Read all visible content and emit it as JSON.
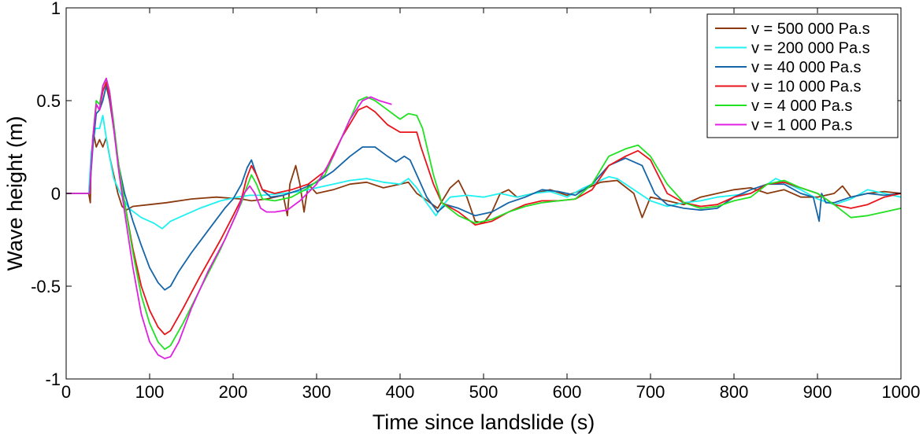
{
  "chart_data": {
    "type": "line",
    "title": "",
    "xlabel": "Time since landslide (s)",
    "ylabel": "Wave height (m)",
    "xlim": [
      0,
      1000
    ],
    "ylim": [
      -1,
      1
    ],
    "xticks": [
      0,
      100,
      200,
      300,
      400,
      500,
      600,
      700,
      800,
      900,
      1000
    ],
    "yticks": [
      -1,
      -0.5,
      0,
      0.5,
      1
    ],
    "xtick_labels": [
      "0",
      "100",
      "200",
      "300",
      "400",
      "500",
      "600",
      "700",
      "800",
      "900",
      "1000"
    ],
    "ytick_labels": [
      "-1",
      "-0.5",
      "0",
      "0.5",
      "1"
    ],
    "grid": false,
    "legend_position": "top-right",
    "series": [
      {
        "name": "v = 500 000 Pa.s",
        "color": "#8B3A0F",
        "x": [
          0,
          27,
          29,
          30,
          33,
          36,
          40,
          44,
          48,
          52,
          57,
          62,
          67,
          72,
          80,
          100,
          120,
          150,
          180,
          210,
          222,
          240,
          260,
          265,
          268,
          275,
          280,
          285,
          290,
          300,
          320,
          340,
          360,
          380,
          400,
          410,
          420,
          430,
          445,
          460,
          470,
          480,
          490,
          500,
          510,
          520,
          530,
          540,
          560,
          580,
          600,
          620,
          640,
          660,
          680,
          690,
          700,
          720,
          740,
          760,
          780,
          800,
          820,
          840,
          860,
          880,
          900,
          920,
          930,
          940,
          960,
          980,
          1000
        ],
        "y": [
          0.0,
          0.0,
          -0.05,
          0.2,
          0.32,
          0.25,
          0.29,
          0.25,
          0.3,
          0.2,
          0.1,
          0.0,
          -0.07,
          -0.09,
          -0.07,
          -0.06,
          -0.05,
          -0.03,
          -0.02,
          -0.03,
          -0.04,
          -0.03,
          -0.01,
          -0.12,
          0.05,
          0.15,
          0.05,
          -0.1,
          0.05,
          0.0,
          0.02,
          0.05,
          0.06,
          0.03,
          0.05,
          0.06,
          0.0,
          -0.03,
          -0.08,
          0.03,
          0.07,
          -0.02,
          -0.15,
          -0.16,
          -0.1,
          0.0,
          0.02,
          -0.02,
          0.0,
          0.02,
          -0.01,
          0.02,
          0.06,
          0.07,
          0.0,
          -0.13,
          -0.02,
          -0.04,
          -0.06,
          -0.02,
          0.0,
          0.02,
          0.03,
          0.0,
          0.02,
          -0.02,
          -0.02,
          0.0,
          0.04,
          -0.02,
          0.0,
          0.01,
          0.0
        ]
      },
      {
        "name": "v = 200 000 Pa.s",
        "color": "#1FF0F0",
        "x": [
          0,
          27,
          30,
          35,
          40,
          44,
          48,
          52,
          57,
          65,
          75,
          90,
          105,
          115,
          125,
          140,
          160,
          185,
          205,
          220,
          235,
          260,
          280,
          300,
          320,
          340,
          360,
          380,
          400,
          410,
          420,
          430,
          443,
          450,
          460,
          480,
          500,
          520,
          540,
          560,
          580,
          600,
          620,
          640,
          650,
          660,
          680,
          700,
          720,
          740,
          760,
          780,
          800,
          820,
          840,
          850,
          860,
          880,
          900,
          920,
          940,
          960,
          980,
          1000
        ],
        "y": [
          0.0,
          0.0,
          0.22,
          0.35,
          0.35,
          0.42,
          0.3,
          0.2,
          0.08,
          0.0,
          -0.08,
          -0.13,
          -0.16,
          -0.19,
          -0.15,
          -0.12,
          -0.08,
          -0.04,
          -0.02,
          -0.01,
          -0.01,
          0.0,
          0.01,
          0.03,
          0.05,
          0.07,
          0.08,
          0.06,
          0.05,
          0.08,
          0.03,
          -0.04,
          -0.12,
          -0.07,
          -0.02,
          -0.01,
          -0.02,
          0.0,
          -0.02,
          0.0,
          0.01,
          -0.02,
          0.03,
          0.07,
          0.09,
          0.08,
          0.02,
          -0.04,
          -0.07,
          -0.05,
          -0.04,
          -0.02,
          -0.01,
          0.0,
          0.05,
          0.08,
          0.06,
          0.02,
          -0.03,
          -0.06,
          -0.03,
          0.02,
          0.0,
          -0.02
        ]
      },
      {
        "name": "v = 40 000 Pa.s",
        "color": "#1565A8",
        "x": [
          0,
          28,
          32,
          36,
          40,
          44,
          48,
          52,
          57,
          63,
          70,
          80,
          90,
          100,
          110,
          118,
          125,
          135,
          150,
          170,
          190,
          200,
          210,
          217,
          222,
          228,
          235,
          245,
          260,
          280,
          300,
          320,
          340,
          355,
          370,
          385,
          395,
          405,
          412,
          420,
          432,
          445,
          455,
          470,
          490,
          510,
          530,
          550,
          570,
          590,
          610,
          630,
          650,
          670,
          690,
          705,
          720,
          740,
          760,
          780,
          800,
          820,
          840,
          860,
          880,
          895,
          902,
          905,
          910,
          920,
          940,
          960,
          980,
          1000
        ],
        "y": [
          0.0,
          0.0,
          0.25,
          0.43,
          0.45,
          0.5,
          0.58,
          0.5,
          0.35,
          0.15,
          0.0,
          -0.15,
          -0.28,
          -0.4,
          -0.48,
          -0.52,
          -0.5,
          -0.42,
          -0.32,
          -0.2,
          -0.08,
          -0.03,
          0.05,
          0.14,
          0.18,
          0.1,
          0.02,
          -0.02,
          -0.01,
          0.02,
          0.06,
          0.12,
          0.2,
          0.25,
          0.25,
          0.2,
          0.17,
          0.2,
          0.18,
          0.1,
          -0.02,
          -0.1,
          -0.06,
          -0.08,
          -0.12,
          -0.1,
          -0.05,
          -0.02,
          0.02,
          0.01,
          -0.01,
          0.05,
          0.15,
          0.19,
          0.15,
          0.0,
          -0.06,
          -0.08,
          -0.09,
          -0.08,
          -0.02,
          0.02,
          0.05,
          0.05,
          0.0,
          -0.02,
          -0.15,
          0.0,
          -0.05,
          -0.05,
          -0.02,
          0.0,
          -0.01,
          0.0
        ]
      },
      {
        "name": "v = 10 000 Pa.s",
        "color": "#E8141A",
        "x": [
          0,
          28,
          32,
          36,
          40,
          44,
          48,
          52,
          57,
          63,
          70,
          80,
          90,
          100,
          110,
          118,
          125,
          140,
          160,
          185,
          200,
          210,
          216,
          222,
          228,
          235,
          250,
          270,
          290,
          310,
          330,
          350,
          360,
          370,
          385,
          400,
          420,
          425,
          440,
          450,
          470,
          490,
          510,
          530,
          550,
          570,
          590,
          610,
          630,
          650,
          670,
          685,
          700,
          720,
          740,
          760,
          780,
          800,
          820,
          840,
          860,
          880,
          900,
          920,
          940,
          960,
          980,
          1000
        ],
        "y": [
          0.0,
          0.0,
          0.3,
          0.48,
          0.45,
          0.55,
          0.6,
          0.52,
          0.35,
          0.15,
          -0.05,
          -0.3,
          -0.5,
          -0.63,
          -0.72,
          -0.76,
          -0.74,
          -0.62,
          -0.45,
          -0.25,
          -0.12,
          -0.03,
          0.08,
          0.15,
          0.1,
          0.02,
          0.0,
          0.02,
          0.05,
          0.12,
          0.3,
          0.45,
          0.47,
          0.44,
          0.37,
          0.33,
          0.33,
          0.25,
          0.05,
          -0.05,
          -0.1,
          -0.17,
          -0.15,
          -0.1,
          -0.06,
          -0.04,
          -0.04,
          -0.03,
          0.02,
          0.15,
          0.2,
          0.23,
          0.18,
          0.0,
          -0.05,
          -0.07,
          -0.06,
          -0.02,
          0.0,
          0.05,
          0.06,
          0.03,
          0.0,
          -0.06,
          -0.08,
          -0.06,
          -0.02,
          0.0
        ]
      },
      {
        "name": "v = 4 000 Pa.s",
        "color": "#22E022",
        "x": [
          0,
          28,
          32,
          36,
          40,
          44,
          48,
          52,
          57,
          63,
          70,
          80,
          90,
          100,
          110,
          118,
          125,
          140,
          160,
          185,
          200,
          210,
          216,
          222,
          228,
          235,
          250,
          270,
          290,
          310,
          330,
          350,
          360,
          370,
          385,
          400,
          410,
          420,
          427,
          440,
          450,
          470,
          490,
          510,
          530,
          550,
          570,
          590,
          610,
          630,
          650,
          670,
          685,
          700,
          720,
          740,
          760,
          780,
          800,
          820,
          840,
          860,
          880,
          900,
          920,
          940,
          960,
          980,
          1000
        ],
        "y": [
          0.0,
          0.0,
          0.3,
          0.5,
          0.48,
          0.58,
          0.62,
          0.55,
          0.38,
          0.15,
          -0.05,
          -0.32,
          -0.55,
          -0.7,
          -0.8,
          -0.84,
          -0.82,
          -0.7,
          -0.52,
          -0.3,
          -0.15,
          -0.05,
          0.03,
          0.1,
          0.05,
          -0.03,
          -0.04,
          -0.02,
          0.03,
          0.1,
          0.3,
          0.5,
          0.52,
          0.5,
          0.45,
          0.4,
          0.43,
          0.42,
          0.35,
          0.1,
          -0.05,
          -0.12,
          -0.16,
          -0.14,
          -0.1,
          -0.07,
          -0.05,
          -0.04,
          -0.03,
          0.05,
          0.2,
          0.24,
          0.26,
          0.2,
          0.05,
          -0.05,
          -0.08,
          -0.07,
          -0.04,
          -0.02,
          0.05,
          0.07,
          0.03,
          0.0,
          -0.06,
          -0.13,
          -0.12,
          -0.1,
          -0.08
        ]
      },
      {
        "name": "v = 1 000 Pa.s",
        "color": "#E020E0",
        "x": [
          0,
          28,
          32,
          36,
          40,
          44,
          48,
          52,
          57,
          63,
          70,
          80,
          90,
          100,
          110,
          118,
          125,
          135,
          150,
          170,
          190,
          205,
          213,
          220,
          226,
          233,
          240,
          250,
          265,
          280,
          300,
          320,
          340,
          355,
          365,
          375,
          390
        ],
        "y": [
          0.0,
          0.0,
          0.3,
          0.48,
          0.45,
          0.58,
          0.62,
          0.55,
          0.35,
          0.12,
          -0.1,
          -0.4,
          -0.65,
          -0.8,
          -0.87,
          -0.89,
          -0.88,
          -0.8,
          -0.62,
          -0.42,
          -0.25,
          -0.1,
          0.0,
          0.04,
          0.0,
          -0.08,
          -0.1,
          -0.1,
          -0.09,
          -0.04,
          0.05,
          0.2,
          0.4,
          0.5,
          0.52,
          0.5,
          0.48
        ]
      }
    ]
  }
}
